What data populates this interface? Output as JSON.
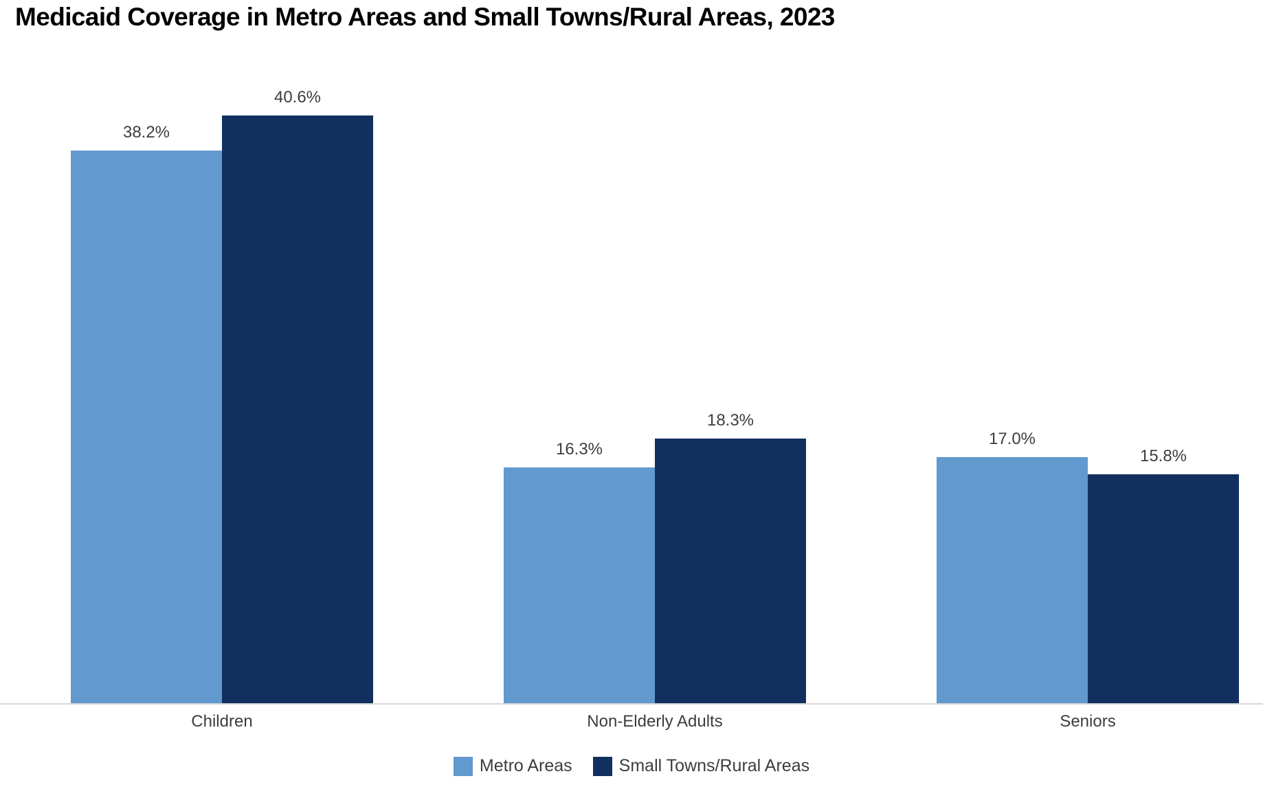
{
  "chart_data": {
    "type": "bar",
    "title": "Medicaid Coverage in Metro Areas and Small Towns/Rural Areas, 2023",
    "categories": [
      "Children",
      "Non-Elderly Adults",
      "Seniors"
    ],
    "series": [
      {
        "name": "Metro Areas",
        "color": "#6299CE",
        "values": [
          38.2,
          16.3,
          17.0
        ],
        "value_labels": [
          "38.2%",
          "16.3%",
          "17.0%"
        ]
      },
      {
        "name": "Small Towns/Rural Areas",
        "color": "#12305F",
        "values": [
          40.6,
          18.3,
          15.8
        ],
        "value_labels": [
          "40.6%",
          "18.3%",
          "15.8%"
        ]
      }
    ],
    "xlabel": "",
    "ylabel": "",
    "ylim": [
      0,
      45
    ],
    "y_axis_visible": false,
    "grid": false,
    "legend_position": "bottom",
    "value_suffix": "%"
  },
  "colors": {
    "metro_bar": "#6299CE",
    "rural_bar": "#12305F",
    "axis_line": "#d8d8d8",
    "label_text": "#3d3d3d",
    "title_text": "#000000",
    "background": "#ffffff"
  },
  "legend": {
    "items": [
      {
        "label": "Metro Areas"
      },
      {
        "label": "Small Towns/Rural Areas"
      }
    ]
  }
}
